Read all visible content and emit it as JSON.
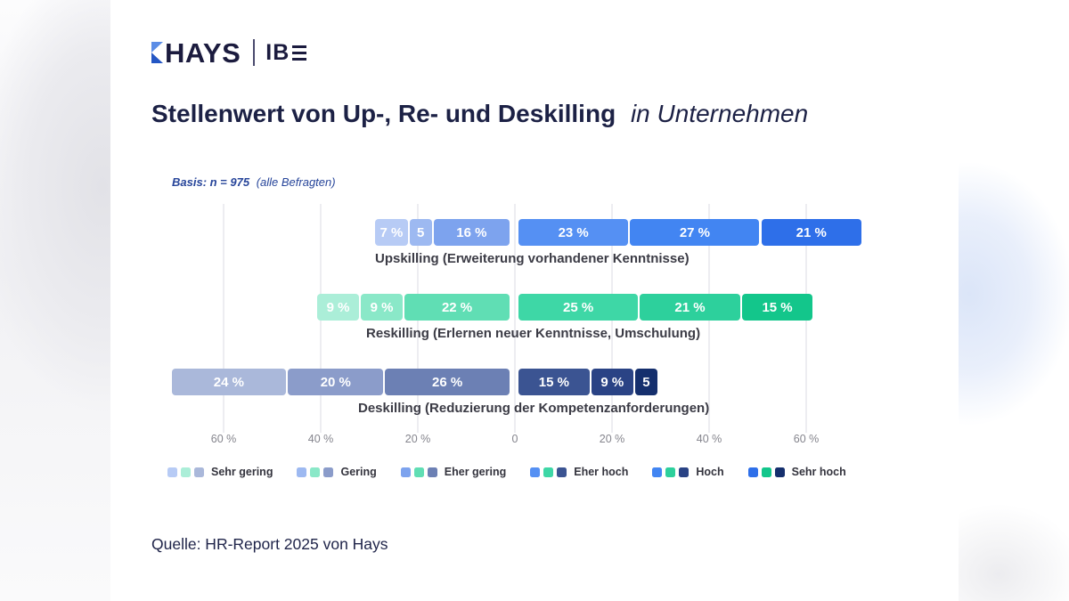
{
  "brand": {
    "hays": "HAYS",
    "ibe_prefix": "IB"
  },
  "title": {
    "bold": "Stellenwert von Up-, Re- und Deskilling",
    "italic": "in Unternehmen"
  },
  "basis": {
    "bold": "Basis: n = 975",
    "rest": "(alle Befragten)"
  },
  "source": "Quelle: HR-Report 2025 von Hays",
  "colors": {
    "title_text": "#1c2145",
    "basis_text": "#27459a",
    "axis_text": "#85858d",
    "row_label_text": "#3b3b45",
    "gridline": "#ededf1",
    "logo_navy": "#1b1b3e",
    "logo_blue_light": "#5b8de6",
    "logo_blue_dark": "#2456c4"
  },
  "chart_data": {
    "type": "bar",
    "subtype": "diverging-stacked-horizontal",
    "unit": "%",
    "title": "Stellenwert von Up-, Re- und Deskilling in Unternehmen",
    "basis_note": "Basis: n = 975 (alle Befragten)",
    "axis_ticks": [
      "60 %",
      "40 %",
      "20 %",
      "0",
      "20 %",
      "40 %",
      "60 %"
    ],
    "axis_range_percent": [
      -70,
      71
    ],
    "grid": true,
    "legend_position": "bottom",
    "legend": [
      {
        "label": "Sehr gering",
        "colors": [
          "#b7cbf5",
          "#abeed8",
          "#aab8da"
        ]
      },
      {
        "label": "Gering",
        "colors": [
          "#9db9f1",
          "#8ae8c8",
          "#8b9cca"
        ]
      },
      {
        "label": "Eher gering",
        "colors": [
          "#7da3ee",
          "#60deb4",
          "#6c80b4"
        ]
      },
      {
        "label": "Eher hoch",
        "colors": [
          "#5590f3",
          "#3ed7a6",
          "#3b5492"
        ]
      },
      {
        "label": "Hoch",
        "colors": [
          "#4285f2",
          "#2dd09c",
          "#2a4385"
        ]
      },
      {
        "label": "Sehr hoch",
        "colors": [
          "#2e6fe9",
          "#13c68b",
          "#152f6d"
        ]
      }
    ],
    "rows": [
      {
        "name": "Upskilling",
        "label": "Upskilling (Erweiterung vorhandener Kenntnisse)",
        "left": [
          {
            "category": "Sehr gering",
            "value": 7,
            "text": "7 %",
            "color": "#b7cbf5"
          },
          {
            "category": "Gering",
            "value": 5,
            "text": "5",
            "color": "#9db9f1"
          },
          {
            "category": "Eher gering",
            "value": 16,
            "text": "16 %",
            "color": "#7da3ee"
          }
        ],
        "right": [
          {
            "category": "Eher hoch",
            "value": 23,
            "text": "23 %",
            "color": "#5590f3"
          },
          {
            "category": "Hoch",
            "value": 27,
            "text": "27 %",
            "color": "#4285f2"
          },
          {
            "category": "Sehr hoch",
            "value": 21,
            "text": "21 %",
            "color": "#2e6fe9"
          }
        ]
      },
      {
        "name": "Reskilling",
        "label": "Reskilling (Erlernen neuer Kenntnisse, Umschulung)",
        "left": [
          {
            "category": "Sehr gering",
            "value": 9,
            "text": "9 %",
            "color": "#abeed8"
          },
          {
            "category": "Gering",
            "value": 9,
            "text": "9 %",
            "color": "#8ae8c8"
          },
          {
            "category": "Eher gering",
            "value": 22,
            "text": "22 %",
            "color": "#60deb4"
          }
        ],
        "right": [
          {
            "category": "Eher hoch",
            "value": 25,
            "text": "25 %",
            "color": "#3ed7a6"
          },
          {
            "category": "Hoch",
            "value": 21,
            "text": "21 %",
            "color": "#2dd09c"
          },
          {
            "category": "Sehr hoch",
            "value": 15,
            "text": "15 %",
            "color": "#13c68b"
          }
        ]
      },
      {
        "name": "Deskilling",
        "label": "Deskilling (Reduzierung der Kompetenzanforderungen)",
        "left": [
          {
            "category": "Sehr gering",
            "value": 24,
            "text": "24 %",
            "color": "#aab8da"
          },
          {
            "category": "Gering",
            "value": 20,
            "text": "20 %",
            "color": "#8b9cca"
          },
          {
            "category": "Eher gering",
            "value": 26,
            "text": "26 %",
            "color": "#6c80b4"
          }
        ],
        "right": [
          {
            "category": "Eher hoch",
            "value": 15,
            "text": "15 %",
            "color": "#3b5492"
          },
          {
            "category": "Hoch",
            "value": 9,
            "text": "9 %",
            "color": "#2a4385"
          },
          {
            "category": "Sehr hoch",
            "value": 5,
            "text": "5",
            "color": "#152f6d"
          }
        ]
      }
    ]
  }
}
